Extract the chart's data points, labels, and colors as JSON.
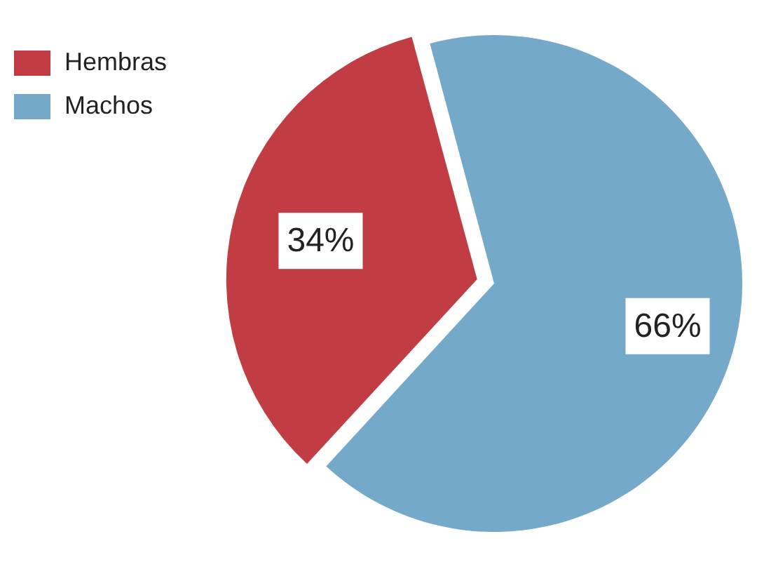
{
  "chart_data": {
    "type": "pie",
    "categories": [
      "Hembras",
      "Machos"
    ],
    "values": [
      34,
      66
    ],
    "colors": [
      "#c23c44",
      "#74a9c9"
    ],
    "value_labels": [
      "34%",
      "66%"
    ],
    "legend": "top left"
  }
}
